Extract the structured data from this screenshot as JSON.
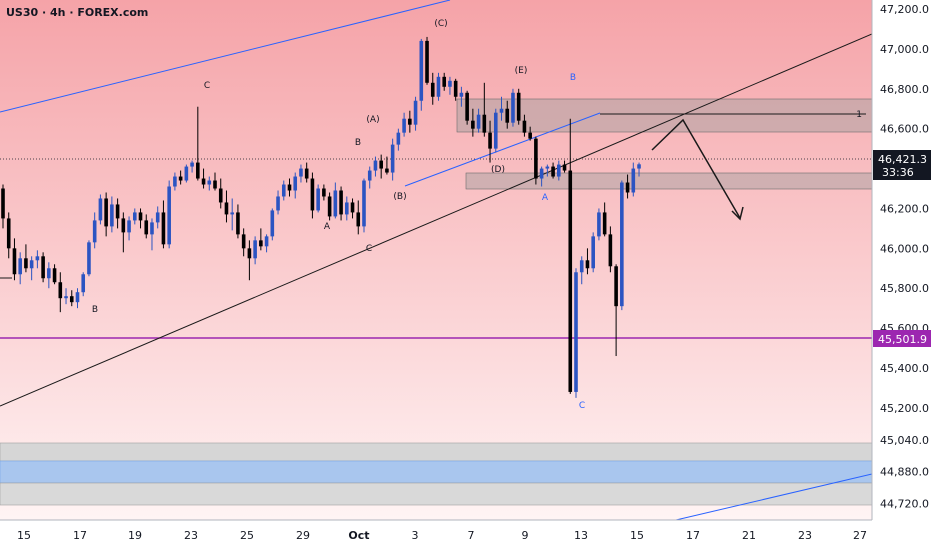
{
  "header": {
    "symbol_title": "US30 · 4h · FOREX.com"
  },
  "colors": {
    "background_top": "#f5a3a8",
    "background_bottom": "#fff4f4",
    "axis_bg": "#ffffff",
    "candle_up": "#2b54c2",
    "candle_down": "#000000",
    "channel_blue": "#2962ff",
    "trendline_black": "#1a1a1a",
    "zone_gray": "#9e9e9e",
    "zone_blue": "#7aa7e6",
    "level_purple": "#9c27b0"
  },
  "chart_data": {
    "type": "candlestick",
    "timeframe": "4h",
    "ylim": [
      44600,
      47250
    ],
    "x_ticks": [
      "15",
      "17",
      "19",
      "23",
      "25",
      "29",
      "Oct",
      "3",
      "7",
      "9",
      "13",
      "15",
      "17",
      "21",
      "23",
      "27"
    ],
    "y_ticks": [
      "47,200.0",
      "47,000.0",
      "46,800.0",
      "46,600.0",
      "46,200.0",
      "46,000.0",
      "45,800.0",
      "45,600.0",
      "45,400.0",
      "45,200.0",
      "45,040.0",
      "44,880.0",
      "44,720.0"
    ],
    "current_price": {
      "label": "46,421.3",
      "value": 46421.3,
      "countdown": "33:36"
    },
    "level_price": {
      "label": "45,501.9",
      "value": 45501.9
    },
    "candles": [
      [
        46300,
        46320,
        46100,
        46150
      ],
      [
        46150,
        46180,
        45950,
        46000
      ],
      [
        46000,
        46050,
        45840,
        45870
      ],
      [
        45870,
        45980,
        45820,
        45950
      ],
      [
        45950,
        46020,
        45880,
        45900
      ],
      [
        45900,
        45960,
        45840,
        45940
      ],
      [
        45940,
        45990,
        45900,
        45960
      ],
      [
        45960,
        45980,
        45830,
        45850
      ],
      [
        45850,
        45930,
        45800,
        45900
      ],
      [
        45900,
        45920,
        45820,
        45830
      ],
      [
        45830,
        45880,
        45680,
        45750
      ],
      [
        45750,
        45800,
        45720,
        45760
      ],
      [
        45760,
        45790,
        45710,
        45730
      ],
      [
        45730,
        45800,
        45700,
        45780
      ],
      [
        45780,
        45880,
        45760,
        45870
      ],
      [
        45870,
        46040,
        45860,
        46030
      ],
      [
        46030,
        46180,
        46000,
        46140
      ],
      [
        46140,
        46270,
        46120,
        46250
      ],
      [
        46250,
        46280,
        46060,
        46110
      ],
      [
        46110,
        46260,
        46080,
        46220
      ],
      [
        46220,
        46250,
        46100,
        46150
      ],
      [
        46150,
        46180,
        45980,
        46080
      ],
      [
        46080,
        46160,
        46040,
        46140
      ],
      [
        46140,
        46200,
        46120,
        46180
      ],
      [
        46180,
        46200,
        46100,
        46140
      ],
      [
        46140,
        46170,
        46050,
        46070
      ],
      [
        46070,
        46150,
        45990,
        46130
      ],
      [
        46130,
        46210,
        46100,
        46180
      ],
      [
        46180,
        46240,
        46000,
        46020
      ],
      [
        46020,
        46340,
        46000,
        46310
      ],
      [
        46310,
        46380,
        46290,
        46360
      ],
      [
        46360,
        46390,
        46320,
        46340
      ],
      [
        46340,
        46420,
        46330,
        46410
      ],
      [
        46410,
        46440,
        46380,
        46430
      ],
      [
        46430,
        46710,
        46340,
        46350
      ],
      [
        46350,
        46400,
        46300,
        46320
      ],
      [
        46320,
        46360,
        46290,
        46340
      ],
      [
        46340,
        46380,
        46290,
        46300
      ],
      [
        46300,
        46350,
        46200,
        46230
      ],
      [
        46230,
        46290,
        46130,
        46170
      ],
      [
        46170,
        46250,
        46090,
        46180
      ],
      [
        46180,
        46220,
        46050,
        46070
      ],
      [
        46070,
        46100,
        45960,
        46000
      ],
      [
        46000,
        46040,
        45840,
        45950
      ],
      [
        45950,
        46060,
        45920,
        46040
      ],
      [
        46040,
        46100,
        45990,
        46010
      ],
      [
        46010,
        46070,
        45980,
        46060
      ],
      [
        46060,
        46200,
        46040,
        46190
      ],
      [
        46190,
        46290,
        46170,
        46260
      ],
      [
        46260,
        46340,
        46240,
        46320
      ],
      [
        46320,
        46350,
        46260,
        46290
      ],
      [
        46290,
        46380,
        46250,
        46360
      ],
      [
        46360,
        46420,
        46330,
        46400
      ],
      [
        46400,
        46430,
        46330,
        46350
      ],
      [
        46350,
        46380,
        46150,
        46190
      ],
      [
        46190,
        46320,
        46180,
        46300
      ],
      [
        46300,
        46320,
        46240,
        46260
      ],
      [
        46260,
        46280,
        46140,
        46160
      ],
      [
        46160,
        46330,
        46150,
        46290
      ],
      [
        46290,
        46310,
        46140,
        46170
      ],
      [
        46170,
        46260,
        46140,
        46230
      ],
      [
        46230,
        46250,
        46150,
        46180
      ],
      [
        46180,
        46240,
        46070,
        46110
      ],
      [
        46110,
        46350,
        46080,
        46340
      ],
      [
        46340,
        46410,
        46300,
        46390
      ],
      [
        46390,
        46460,
        46360,
        46440
      ],
      [
        46440,
        46470,
        46350,
        46400
      ],
      [
        46400,
        46460,
        46370,
        46380
      ],
      [
        46380,
        46550,
        46340,
        46520
      ],
      [
        46520,
        46600,
        46490,
        46580
      ],
      [
        46580,
        46680,
        46560,
        46650
      ],
      [
        46650,
        46690,
        46580,
        46620
      ],
      [
        46620,
        46760,
        46590,
        46740
      ],
      [
        46740,
        47050,
        46690,
        47040
      ],
      [
        47040,
        47060,
        46820,
        46830
      ],
      [
        46830,
        46880,
        46720,
        46760
      ],
      [
        46760,
        46880,
        46740,
        46860
      ],
      [
        46860,
        46880,
        46790,
        46810
      ],
      [
        46810,
        46860,
        46770,
        46840
      ],
      [
        46840,
        46850,
        46740,
        46760
      ],
      [
        46760,
        46810,
        46710,
        46780
      ],
      [
        46780,
        46790,
        46620,
        46640
      ],
      [
        46640,
        46700,
        46560,
        46600
      ],
      [
        46600,
        46700,
        46580,
        46670
      ],
      [
        46670,
        46830,
        46560,
        46580
      ],
      [
        46580,
        46640,
        46430,
        46500
      ],
      [
        46500,
        46700,
        46480,
        46680
      ],
      [
        46680,
        46760,
        46640,
        46700
      ],
      [
        46700,
        46740,
        46600,
        46630
      ],
      [
        46630,
        46800,
        46610,
        46780
      ],
      [
        46780,
        46800,
        46620,
        46640
      ],
      [
        46640,
        46670,
        46560,
        46580
      ],
      [
        46580,
        46610,
        46540,
        46550
      ],
      [
        46550,
        46560,
        46320,
        46350
      ],
      [
        46350,
        46410,
        46310,
        46400
      ],
      [
        46400,
        46420,
        46360,
        46410
      ],
      [
        46410,
        46430,
        46350,
        46360
      ],
      [
        46360,
        46440,
        46340,
        46420
      ],
      [
        46420,
        46440,
        46380,
        46390
      ],
      [
        46390,
        46650,
        45270,
        45280
      ],
      [
        45280,
        45900,
        45250,
        45880
      ],
      [
        45880,
        45960,
        45820,
        45940
      ],
      [
        45940,
        46000,
        45870,
        45900
      ],
      [
        45900,
        46080,
        45880,
        46060
      ],
      [
        46060,
        46200,
        46040,
        46180
      ],
      [
        46180,
        46230,
        46060,
        46070
      ],
      [
        46070,
        46110,
        45880,
        45910
      ],
      [
        45910,
        45920,
        45460,
        45710
      ],
      [
        45710,
        46340,
        45690,
        46330
      ],
      [
        46330,
        46370,
        46250,
        46280
      ],
      [
        46280,
        46430,
        46260,
        46400
      ],
      [
        46400,
        46430,
        46360,
        46421.3
      ]
    ]
  },
  "annotations": {
    "waves": [
      {
        "text": "C"
      },
      {
        "text": "B"
      },
      {
        "text": "A"
      },
      {
        "text": "C"
      },
      {
        "text": "(A)"
      },
      {
        "text": "B"
      },
      {
        "text": "(B)"
      },
      {
        "text": "(C)"
      },
      {
        "text": "(D)"
      },
      {
        "text": "(E)"
      },
      {
        "text": "A"
      },
      {
        "text": "B"
      },
      {
        "text": "C"
      }
    ],
    "level_marker": "1"
  }
}
